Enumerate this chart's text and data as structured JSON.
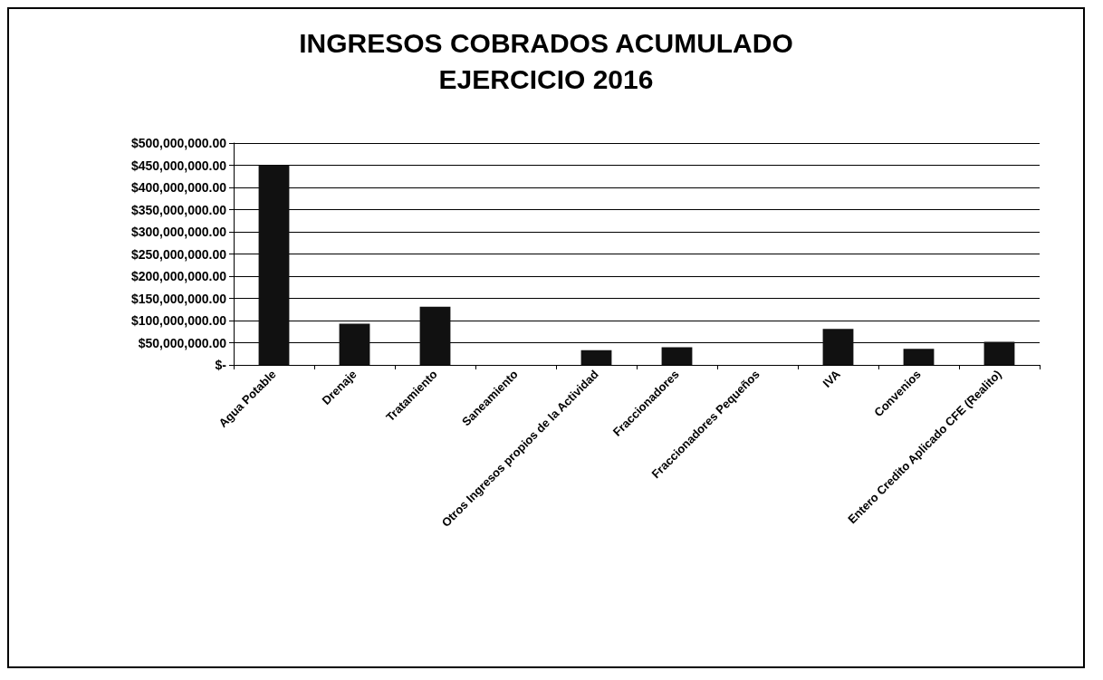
{
  "chart_data": {
    "type": "bar",
    "title": "INGRESOS COBRADOS ACUMULADO\nEJERCICIO 2016",
    "categories": [
      "Agua Potable",
      "Drenaje",
      "Tratamiento",
      "Saneamiento",
      "Otros Ingresos propios de la Actividad",
      "Fraccionadores",
      "Fraccionadores Pequeños",
      "IVA",
      "Convenios",
      "Entero Credito Aplicado CFE (Realito)"
    ],
    "values": [
      450000000,
      93000000,
      131000000,
      0,
      33000000,
      40000000,
      0,
      81000000,
      36000000,
      52000000
    ],
    "color": "#111111",
    "ylim": [
      0,
      500000000
    ],
    "yticks": [
      {
        "value": 0,
        "label": "$-"
      },
      {
        "value": 50000000,
        "label": "$50,000,000.00"
      },
      {
        "value": 100000000,
        "label": "$100,000,000.00"
      },
      {
        "value": 150000000,
        "label": "$150,000,000.00"
      },
      {
        "value": 200000000,
        "label": "$200,000,000.00"
      },
      {
        "value": 250000000,
        "label": "$250,000,000.00"
      },
      {
        "value": 300000000,
        "label": "$300,000,000.00"
      },
      {
        "value": 350000000,
        "label": "$350,000,000.00"
      },
      {
        "value": 400000000,
        "label": "$400,000,000.00"
      },
      {
        "value": 450000000,
        "label": "$450,000,000.00"
      },
      {
        "value": 500000000,
        "label": "$500,000,000.00"
      }
    ],
    "grid": "y"
  }
}
